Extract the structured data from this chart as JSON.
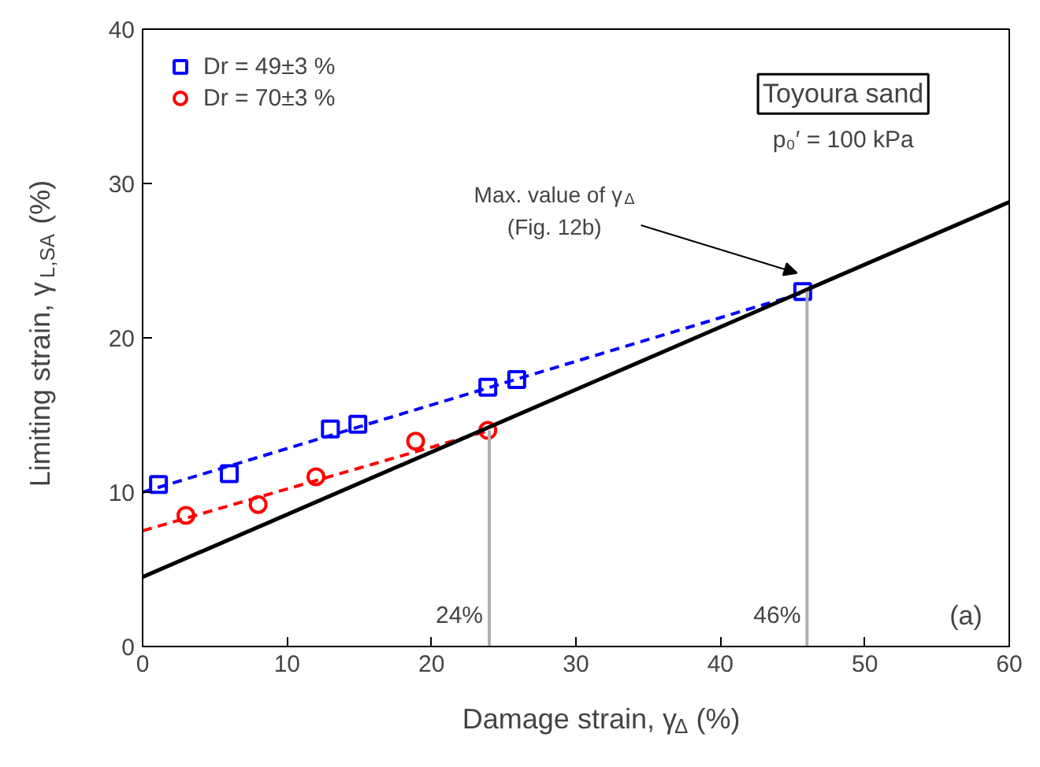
{
  "chart_data": {
    "type": "scatter",
    "xlabel": "Damage strain, γ$_{Δ}$ (%)",
    "ylabel": "Limiting strain, γ$_{L,SA}$ (%)",
    "xlim": [
      0,
      60
    ],
    "ylim": [
      0,
      40
    ],
    "xticks": [
      0,
      10,
      20,
      30,
      40,
      50,
      60
    ],
    "yticks": [
      0,
      10,
      20,
      30,
      40
    ],
    "grid": false,
    "legend": "top left",
    "series": [
      {
        "name": "Dr = 49±3 %",
        "color": "#0000ff",
        "marker": "square",
        "x": [
          1.1,
          6,
          13,
          14.9,
          23.9,
          25.9,
          45.7
        ],
        "values": [
          10.5,
          11.2,
          14.1,
          14.4,
          16.8,
          17.3,
          23.0
        ]
      },
      {
        "name": "Dr = 70±3 %",
        "color": "#ff0000",
        "marker": "circle",
        "x": [
          3,
          8,
          12,
          18.9,
          23.9
        ],
        "values": [
          8.5,
          9.2,
          11.0,
          13.3,
          14.0
        ]
      },
      {
        "type": "line",
        "color": "#0000ff",
        "line_style": "dashed",
        "x": [
          0,
          46
        ],
        "values": [
          10.0,
          23.0
        ]
      },
      {
        "type": "line",
        "color": "#ff0000",
        "line_style": "dashed",
        "x": [
          0,
          24
        ],
        "values": [
          7.5,
          14.0
        ]
      },
      {
        "type": "line",
        "color": "#000000",
        "line_style": "solid",
        "x": [
          0,
          60
        ],
        "values": [
          4.5,
          28.8
        ]
      },
      {
        "type": "line",
        "color": "#b0b0b0",
        "line_style": "solid",
        "x": [
          24,
          24
        ],
        "values": [
          0,
          14.0
        ]
      },
      {
        "type": "line",
        "color": "#b0b0b0",
        "line_style": "solid",
        "x": [
          46,
          46
        ],
        "values": [
          0,
          23.0
        ]
      }
    ],
    "annotations": [
      "Toyoura sand",
      "p₀′ = 100 kPa",
      "(a)",
      "Max. value of γ$_{Δ}$\n(Fig. 12b)",
      {
        "text": "24%",
        "x": 24,
        "y": 2
      },
      {
        "text": "46%",
        "x": 46,
        "y": 2
      }
    ]
  }
}
